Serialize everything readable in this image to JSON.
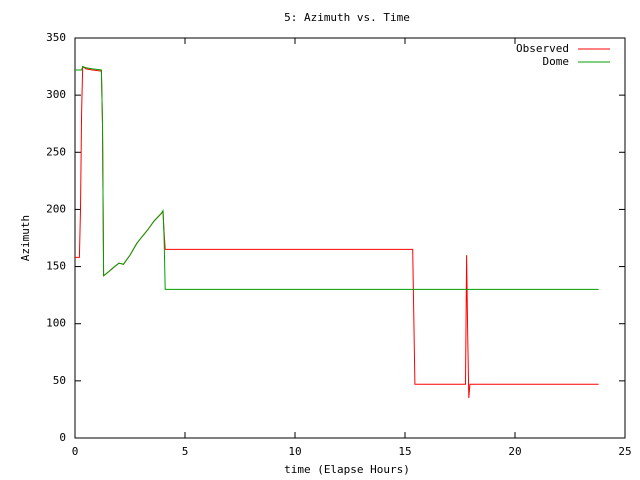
{
  "chart_data": {
    "type": "line",
    "title": "5: Azimuth vs. Time",
    "x_label": "time (Elapse Hours)",
    "y_label": "Azimuth",
    "series": [
      {
        "name": "Observed",
        "color": "#ff0000",
        "x": [
          0,
          0.2,
          0.25,
          0.3,
          0.35,
          0.5,
          0.8,
          1.2,
          1.25,
          1.3,
          1.5,
          1.8,
          2.0,
          2.2,
          2.5,
          2.8,
          3.0,
          3.3,
          3.6,
          3.9,
          4.0,
          4.05,
          4.1,
          15.35,
          15.45,
          17.75,
          17.8,
          17.85,
          17.9,
          17.95,
          23.8
        ],
        "values": [
          158,
          158,
          200,
          285,
          325,
          323,
          322,
          321,
          275,
          142,
          145,
          150,
          153,
          152,
          160,
          170,
          175,
          182,
          190,
          196,
          198,
          180,
          165,
          165,
          47,
          47,
          160,
          90,
          35,
          47,
          47
        ]
      },
      {
        "name": "Dome",
        "color": "#00a000",
        "x": [
          0,
          0.3,
          0.35,
          0.5,
          0.8,
          1.2,
          1.25,
          1.3,
          1.5,
          1.8,
          2.0,
          2.2,
          2.5,
          2.8,
          3.0,
          3.3,
          3.6,
          3.9,
          4.0,
          4.05,
          4.1,
          23.8
        ],
        "values": [
          322,
          322,
          325,
          324,
          323,
          322,
          275,
          142,
          145,
          150,
          153,
          152,
          160,
          170,
          175,
          182,
          190,
          196,
          199,
          175,
          130,
          130
        ]
      }
    ],
    "xlim": [
      0,
      25
    ],
    "xticks": [
      0,
      5,
      10,
      15,
      20,
      25
    ],
    "ylim": [
      0,
      350
    ],
    "yticks": [
      0,
      50,
      100,
      150,
      200,
      250,
      300,
      350
    ],
    "legend": "top-right"
  }
}
